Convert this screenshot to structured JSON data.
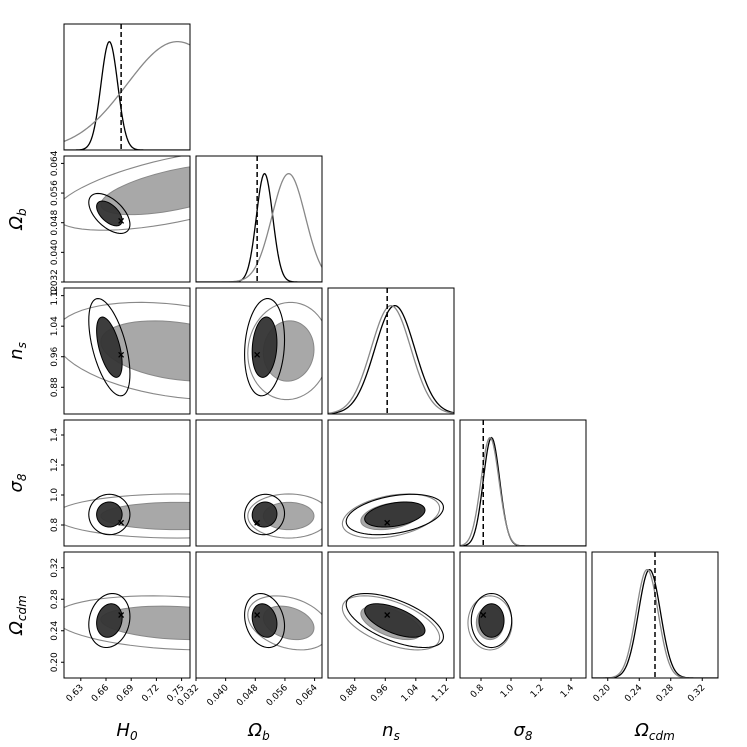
{
  "chart_data": {
    "type": "corner",
    "parameters": [
      {
        "key": "H0",
        "label": "H",
        "sub": "0",
        "range": [
          0.61,
          0.76
        ],
        "ticks": [
          "0.63",
          "0.66",
          "0.69",
          "0.72",
          "0.75"
        ],
        "tick_values": [
          0.63,
          0.66,
          0.69,
          0.72,
          0.75
        ],
        "truth": 0.678
      },
      {
        "key": "Ob",
        "label": "Ω",
        "sub": "b",
        "range": [
          0.032,
          0.066
        ],
        "ticks": [
          "0.032",
          "0.040",
          "0.048",
          "0.056",
          "0.064"
        ],
        "tick_values": [
          0.032,
          0.04,
          0.048,
          0.056,
          0.064
        ],
        "truth": 0.0485
      },
      {
        "key": "ns",
        "label": "n",
        "sub": "s",
        "range": [
          0.81,
          1.14
        ],
        "ticks": [
          "0.88",
          "0.96",
          "1.04",
          "1.12"
        ],
        "tick_values": [
          0.88,
          0.96,
          1.04,
          1.12
        ],
        "truth": 0.965
      },
      {
        "key": "s8",
        "label": "σ",
        "sub": "8",
        "range": [
          0.66,
          1.5
        ],
        "ticks": [
          "0.8",
          "1.0",
          "1.2",
          "1.4"
        ],
        "tick_values": [
          0.8,
          1.0,
          1.2,
          1.4
        ],
        "truth": 0.815
      },
      {
        "key": "Ocdm",
        "label": "Ω",
        "sub": "cdm",
        "range": [
          0.18,
          0.34
        ],
        "ticks": [
          "0.20",
          "0.24",
          "0.28",
          "0.32"
        ],
        "tick_values": [
          0.2,
          0.24,
          0.28,
          0.32
        ],
        "truth": 0.26
      }
    ],
    "posteriors": [
      {
        "color": "#000000",
        "fill": "#333333",
        "mean": [
          0.664,
          0.0505,
          0.985,
          0.87,
          0.253
        ],
        "sd": [
          0.01,
          0.0022,
          0.052,
          0.055,
          0.014
        ]
      },
      {
        "color": "#888888",
        "fill": "#999999",
        "mean": [
          0.745,
          0.057,
          0.975,
          0.86,
          0.25
        ],
        "sd": [
          0.06,
          0.0045,
          0.052,
          0.06,
          0.014
        ]
      }
    ],
    "correlations": [
      {
        "pair": [
          1,
          0
        ],
        "black": -0.55,
        "gray": 0.6
      },
      {
        "pair": [
          2,
          0
        ],
        "black": -0.55,
        "gray": -0.3
      },
      {
        "pair": [
          2,
          1
        ],
        "black": 0.15,
        "gray": 0.05
      },
      {
        "pair": [
          3,
          0
        ],
        "black": 0.0,
        "gray": 0.0
      },
      {
        "pair": [
          3,
          1
        ],
        "black": 0.05,
        "gray": 0.0
      },
      {
        "pair": [
          3,
          2
        ],
        "black": 0.35,
        "gray": 0.35
      },
      {
        "pair": [
          4,
          0
        ],
        "black": 0.15,
        "gray": -0.2
      },
      {
        "pair": [
          4,
          1
        ],
        "black": -0.2,
        "gray": -0.3
      },
      {
        "pair": [
          4,
          2
        ],
        "black": -0.6,
        "gray": -0.55
      },
      {
        "pair": [
          4,
          3
        ],
        "black": 0.0,
        "gray": 0.0
      }
    ],
    "levels": [
      "1-sigma (filled)",
      "2-sigma (line)"
    ],
    "truth_marker": "x"
  }
}
